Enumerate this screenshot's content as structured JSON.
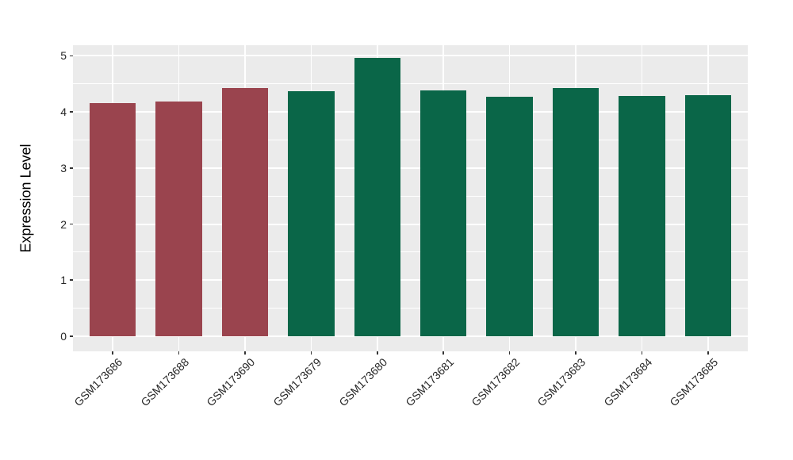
{
  "figure": {
    "background": "#FFFFFF",
    "panel_background": "#EBEBEB",
    "grid_major_color": "#FFFFFF",
    "grid_minor_color": "#FFFFFF",
    "tick_mark_color": "#333333",
    "axis_text_color": "#262626",
    "axis_title_color": "#000000"
  },
  "chart_data": {
    "type": "bar",
    "title": "",
    "xlabel": "",
    "ylabel": "Expression Level",
    "categories": [
      "GSM173686",
      "GSM173688",
      "GSM173690",
      "GSM173679",
      "GSM173680",
      "GSM173681",
      "GSM173682",
      "GSM173683",
      "GSM173684",
      "GSM173685"
    ],
    "values": [
      4.16,
      4.18,
      4.43,
      4.37,
      4.96,
      4.39,
      4.27,
      4.43,
      4.28,
      4.3
    ],
    "bar_colors": [
      "#9A444E",
      "#9A444E",
      "#9A444E",
      "#0A6648",
      "#0A6648",
      "#0A6648",
      "#0A6648",
      "#0A6648",
      "#0A6648",
      "#0A6648"
    ],
    "group_colors": {
      "left_group": "#9A444E",
      "right_group": "#0A6648"
    },
    "yticks": [
      0,
      1,
      2,
      3,
      4,
      5
    ],
    "ylim": [
      -0.27,
      5.19
    ],
    "bar_category_width": 0.7,
    "x_tick_rotation_deg": 45,
    "grid": "major+minor",
    "legend": "none"
  }
}
